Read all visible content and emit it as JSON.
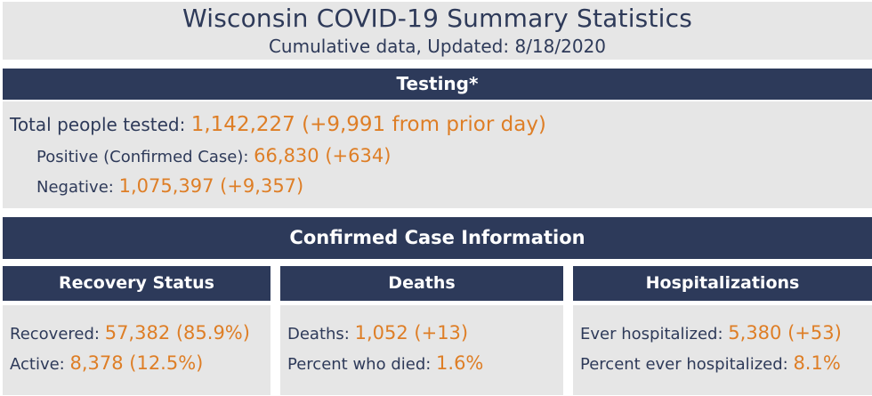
{
  "colors": {
    "navy": "#2d3a5a",
    "orange": "#de7e26",
    "panel_gray": "#e6e6e6",
    "bar_text": "#ffffff"
  },
  "header": {
    "title": "Wisconsin COVID-19 Summary Statistics",
    "subtitle": "Cumulative data, Updated: 8/18/2020"
  },
  "testing": {
    "section_title": "Testing*",
    "rows": [
      {
        "label": "Total people tested: ",
        "value": "1,142,227 (+9,991 from prior day)"
      },
      {
        "label": "Positive (Confirmed Case): ",
        "value": "66,830 (+634)"
      },
      {
        "label": "Negative: ",
        "value": "1,075,397 (+9,357)"
      }
    ]
  },
  "confirmed": {
    "section_title": "Confirmed Case Information",
    "columns": [
      {
        "title": "Recovery Status",
        "rows": [
          {
            "label": "Recovered: ",
            "value": "57,382 (85.9%)"
          },
          {
            "label": "Active: ",
            "value": "8,378 (12.5%)"
          }
        ]
      },
      {
        "title": "Deaths",
        "rows": [
          {
            "label": "Deaths: ",
            "value": "1,052 (+13)"
          },
          {
            "label": "Percent who died: ",
            "value": "1.6%"
          }
        ]
      },
      {
        "title": "Hospitalizations",
        "rows": [
          {
            "label": "Ever hospitalized: ",
            "value": "5,380 (+53)"
          },
          {
            "label": "Percent ever hospitalized: ",
            "value": "8.1%"
          }
        ]
      }
    ]
  },
  "chart_data": {
    "type": "table",
    "title": "Wisconsin COVID-19 Summary Statistics",
    "subtitle": "Cumulative data, Updated: 8/18/2020",
    "updated": "8/18/2020",
    "testing": {
      "total_people_tested": 1142227,
      "total_people_tested_change_from_prior_day": 9991,
      "positive_confirmed_cases": 66830,
      "positive_change": 634,
      "negative": 1075397,
      "negative_change": 9357
    },
    "confirmed_case_information": {
      "recovered": 57382,
      "recovered_percent": 85.9,
      "active": 8378,
      "active_percent": 12.5,
      "deaths": 1052,
      "deaths_change": 13,
      "percent_who_died": 1.6,
      "ever_hospitalized": 5380,
      "ever_hospitalized_change": 53,
      "percent_ever_hospitalized": 8.1
    }
  }
}
